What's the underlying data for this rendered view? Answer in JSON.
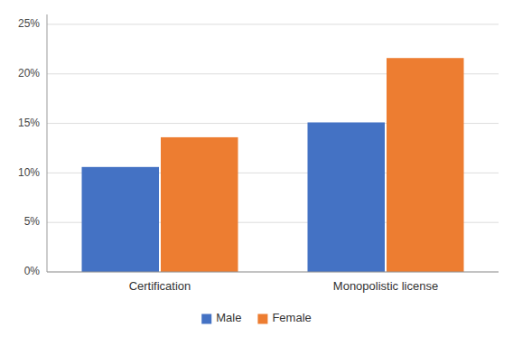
{
  "chart_data": {
    "type": "bar",
    "categories": [
      "Certification",
      "Monopolistic license"
    ],
    "series": [
      {
        "name": "Male",
        "color": "#4472C4",
        "values": [
          0.106,
          0.151
        ]
      },
      {
        "name": "Female",
        "color": "#ED7D31",
        "values": [
          0.136,
          0.216
        ]
      }
    ],
    "ylim": [
      0,
      0.26
    ],
    "yticks": [
      {
        "value": 0.0,
        "label": "0%"
      },
      {
        "value": 0.05,
        "label": "5%"
      },
      {
        "value": 0.1,
        "label": "10%"
      },
      {
        "value": 0.15,
        "label": "15%"
      },
      {
        "value": 0.2,
        "label": "20%"
      },
      {
        "value": 0.25,
        "label": "25%"
      }
    ],
    "grid": true,
    "legend": "bottom"
  }
}
